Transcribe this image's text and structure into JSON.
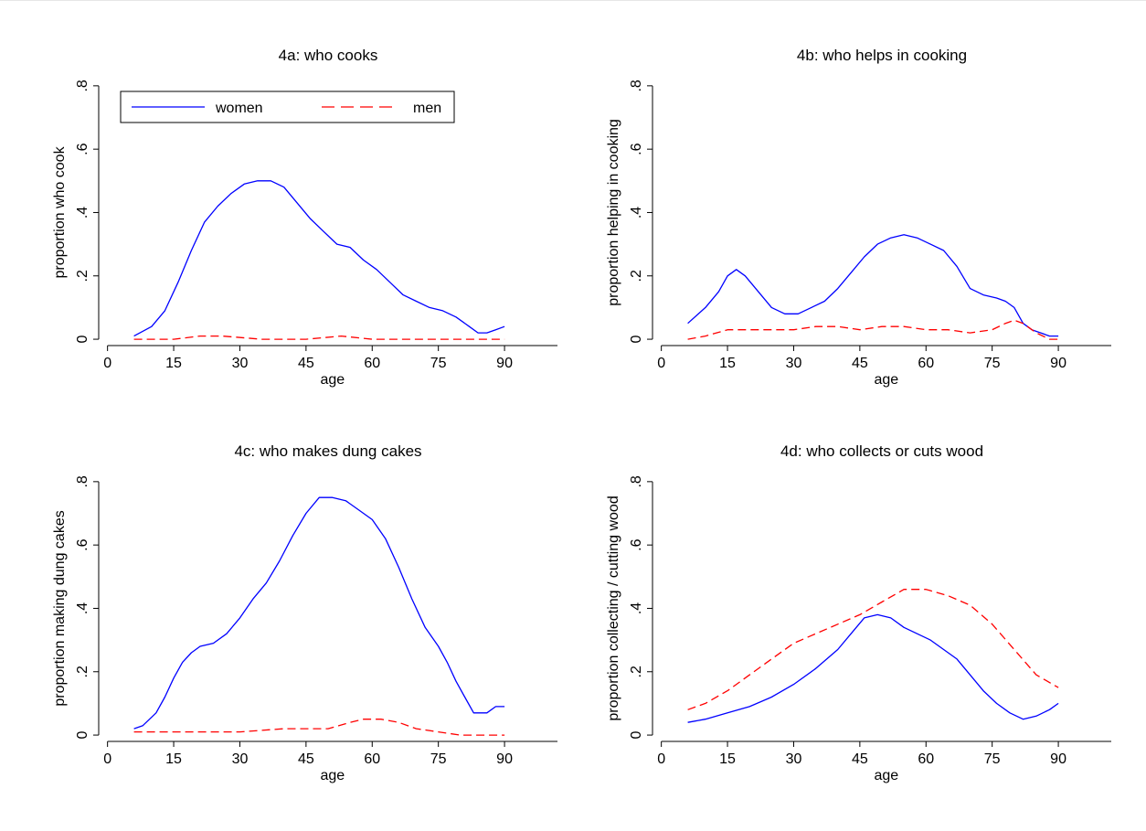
{
  "chart_data": [
    {
      "type": "line",
      "title": "4a: who cooks",
      "xlabel": "age",
      "ylabel": "proportion who cook",
      "xlim": [
        -2,
        102
      ],
      "ylim": [
        -0.02,
        0.84
      ],
      "xticks": [
        0,
        15,
        30,
        45,
        60,
        75,
        90
      ],
      "xtick_labels": [
        "0",
        "15",
        "30",
        "45",
        "60",
        "75",
        "90"
      ],
      "yticks": [
        0,
        0.2,
        0.4,
        0.6,
        0.8
      ],
      "ytick_labels": [
        "0",
        ".2",
        ".4",
        ".6",
        ".8"
      ],
      "legend": {
        "position": "top-left",
        "entries": [
          "women",
          "men"
        ]
      },
      "series": [
        {
          "name": "women",
          "color": "#0000ff",
          "dash": "solid",
          "x": [
            6,
            10,
            13,
            16,
            19,
            22,
            25,
            28,
            31,
            34,
            37,
            40,
            43,
            46,
            49,
            52,
            55,
            58,
            61,
            64,
            67,
            70,
            73,
            76,
            79,
            82,
            84,
            86,
            88,
            90
          ],
          "y": [
            0.01,
            0.04,
            0.09,
            0.18,
            0.28,
            0.37,
            0.42,
            0.46,
            0.49,
            0.5,
            0.5,
            0.48,
            0.43,
            0.38,
            0.34,
            0.3,
            0.29,
            0.25,
            0.22,
            0.18,
            0.14,
            0.12,
            0.1,
            0.09,
            0.07,
            0.04,
            0.02,
            0.02,
            0.03,
            0.04
          ]
        },
        {
          "name": "men",
          "color": "#ff0000",
          "dash": "dashed",
          "x": [
            6,
            15,
            21,
            26,
            35,
            45,
            53,
            60,
            70,
            80,
            90
          ],
          "y": [
            0.0,
            0.0,
            0.01,
            0.01,
            0.0,
            0.0,
            0.01,
            0.0,
            0.0,
            0.0,
            0.0
          ]
        }
      ]
    },
    {
      "type": "line",
      "title": "4b: who helps in cooking",
      "xlabel": "age",
      "ylabel": "proportion helping in cooking",
      "xlim": [
        -2,
        102
      ],
      "ylim": [
        -0.02,
        0.84
      ],
      "xticks": [
        0,
        15,
        30,
        45,
        60,
        75,
        90
      ],
      "xtick_labels": [
        "0",
        "15",
        "30",
        "45",
        "60",
        "75",
        "90"
      ],
      "yticks": [
        0,
        0.2,
        0.4,
        0.6,
        0.8
      ],
      "ytick_labels": [
        "0",
        ".2",
        ".4",
        ".6",
        ".8"
      ],
      "series": [
        {
          "name": "women",
          "color": "#0000ff",
          "dash": "solid",
          "x": [
            6,
            10,
            13,
            15,
            17,
            19,
            22,
            25,
            28,
            31,
            34,
            37,
            40,
            43,
            46,
            49,
            52,
            55,
            58,
            61,
            64,
            67,
            70,
            73,
            76,
            78,
            80,
            82,
            84,
            86,
            88,
            90
          ],
          "y": [
            0.05,
            0.1,
            0.15,
            0.2,
            0.22,
            0.2,
            0.15,
            0.1,
            0.08,
            0.08,
            0.1,
            0.12,
            0.16,
            0.21,
            0.26,
            0.3,
            0.32,
            0.33,
            0.32,
            0.3,
            0.28,
            0.23,
            0.16,
            0.14,
            0.13,
            0.12,
            0.1,
            0.05,
            0.03,
            0.02,
            0.01,
            0.01
          ]
        },
        {
          "name": "men",
          "color": "#ff0000",
          "dash": "dashed",
          "x": [
            6,
            10,
            15,
            20,
            25,
            30,
            35,
            40,
            45,
            50,
            55,
            60,
            65,
            70,
            75,
            78,
            80,
            82,
            85,
            88,
            90
          ],
          "y": [
            0.0,
            0.01,
            0.03,
            0.03,
            0.03,
            0.03,
            0.04,
            0.04,
            0.03,
            0.04,
            0.04,
            0.03,
            0.03,
            0.02,
            0.03,
            0.05,
            0.06,
            0.05,
            0.02,
            0.0,
            0.0
          ]
        }
      ]
    },
    {
      "type": "line",
      "title": "4c: who makes dung cakes",
      "xlabel": "age",
      "ylabel": "proportion making dung cakes",
      "xlim": [
        -2,
        102
      ],
      "ylim": [
        -0.02,
        0.84
      ],
      "xticks": [
        0,
        15,
        30,
        45,
        60,
        75,
        90
      ],
      "xtick_labels": [
        "0",
        "15",
        "30",
        "45",
        "60",
        "75",
        "90"
      ],
      "yticks": [
        0,
        0.2,
        0.4,
        0.6,
        0.8
      ],
      "ytick_labels": [
        "0",
        ".2",
        ".4",
        ".6",
        ".8"
      ],
      "series": [
        {
          "name": "women",
          "color": "#0000ff",
          "dash": "solid",
          "x": [
            6,
            8,
            11,
            13,
            15,
            17,
            19,
            21,
            24,
            27,
            30,
            33,
            36,
            39,
            42,
            45,
            48,
            51,
            54,
            57,
            60,
            63,
            66,
            69,
            72,
            75,
            77,
            79,
            81,
            83,
            86,
            88,
            90
          ],
          "y": [
            0.02,
            0.03,
            0.07,
            0.12,
            0.18,
            0.23,
            0.26,
            0.28,
            0.29,
            0.32,
            0.37,
            0.43,
            0.48,
            0.55,
            0.63,
            0.7,
            0.75,
            0.75,
            0.74,
            0.71,
            0.68,
            0.62,
            0.53,
            0.43,
            0.34,
            0.28,
            0.23,
            0.17,
            0.12,
            0.07,
            0.07,
            0.09,
            0.09
          ]
        },
        {
          "name": "men",
          "color": "#ff0000",
          "dash": "dashed",
          "x": [
            6,
            15,
            22,
            30,
            40,
            50,
            55,
            58,
            62,
            66,
            70,
            75,
            80,
            90
          ],
          "y": [
            0.01,
            0.01,
            0.01,
            0.01,
            0.02,
            0.02,
            0.04,
            0.05,
            0.05,
            0.04,
            0.02,
            0.01,
            0.0,
            0.0
          ]
        }
      ]
    },
    {
      "type": "line",
      "title": "4d: who collects or cuts wood",
      "xlabel": "age",
      "ylabel": "proportion collecting / cutting wood",
      "xlim": [
        -2,
        102
      ],
      "ylim": [
        -0.02,
        0.84
      ],
      "xticks": [
        0,
        15,
        30,
        45,
        60,
        75,
        90
      ],
      "xtick_labels": [
        "0",
        "15",
        "30",
        "45",
        "60",
        "75",
        "90"
      ],
      "yticks": [
        0,
        0.2,
        0.4,
        0.6,
        0.8
      ],
      "ytick_labels": [
        "0",
        ".2",
        ".4",
        ".6",
        ".8"
      ],
      "series": [
        {
          "name": "women",
          "color": "#0000ff",
          "dash": "solid",
          "x": [
            6,
            10,
            15,
            20,
            25,
            30,
            35,
            40,
            43,
            46,
            49,
            52,
            55,
            58,
            61,
            64,
            67,
            70,
            73,
            76,
            79,
            82,
            85,
            88,
            90
          ],
          "y": [
            0.04,
            0.05,
            0.07,
            0.09,
            0.12,
            0.16,
            0.21,
            0.27,
            0.32,
            0.37,
            0.38,
            0.37,
            0.34,
            0.32,
            0.3,
            0.27,
            0.24,
            0.19,
            0.14,
            0.1,
            0.07,
            0.05,
            0.06,
            0.08,
            0.1
          ]
        },
        {
          "name": "men",
          "color": "#ff0000",
          "dash": "dashed",
          "x": [
            6,
            10,
            15,
            20,
            25,
            30,
            35,
            40,
            45,
            50,
            55,
            60,
            65,
            70,
            75,
            80,
            85,
            90
          ],
          "y": [
            0.08,
            0.1,
            0.14,
            0.19,
            0.24,
            0.29,
            0.32,
            0.35,
            0.38,
            0.42,
            0.46,
            0.46,
            0.44,
            0.41,
            0.35,
            0.27,
            0.19,
            0.15
          ]
        }
      ]
    }
  ]
}
